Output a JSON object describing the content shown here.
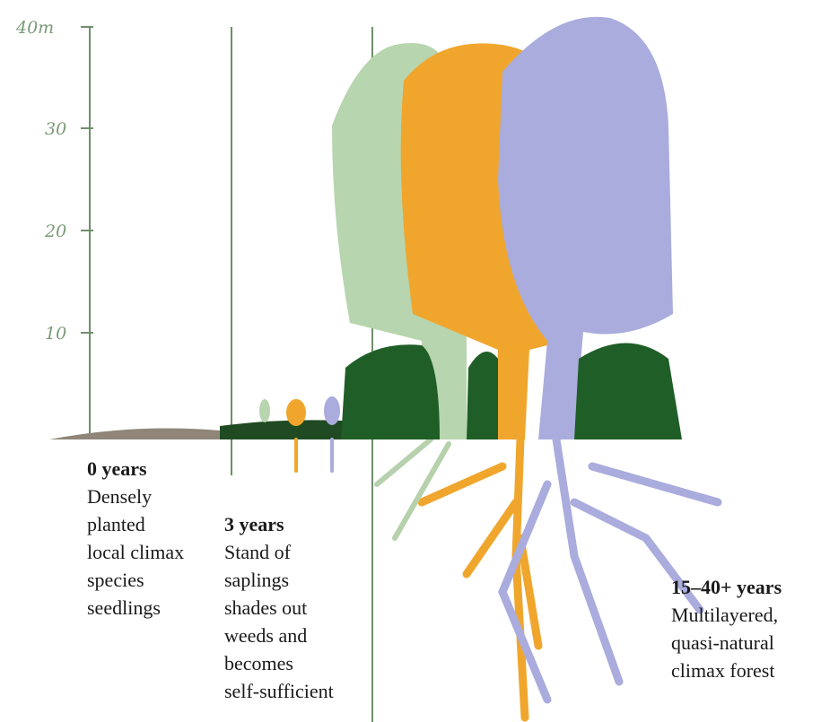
{
  "axis": {
    "ticks": [
      "40m",
      "30",
      "20",
      "10"
    ]
  },
  "stages": [
    {
      "title": "0 years",
      "lines": [
        "Densely",
        "planted",
        "local climax",
        "species",
        "seedlings"
      ]
    },
    {
      "title": "3 years",
      "lines": [
        "Stand of",
        "saplings",
        "shades out",
        "weeds and",
        "becomes",
        "self-sufficient"
      ]
    },
    {
      "title": "15–40+ years",
      "lines": [
        "Multilayered,",
        "quasi-natural",
        "climax forest"
      ]
    }
  ]
}
